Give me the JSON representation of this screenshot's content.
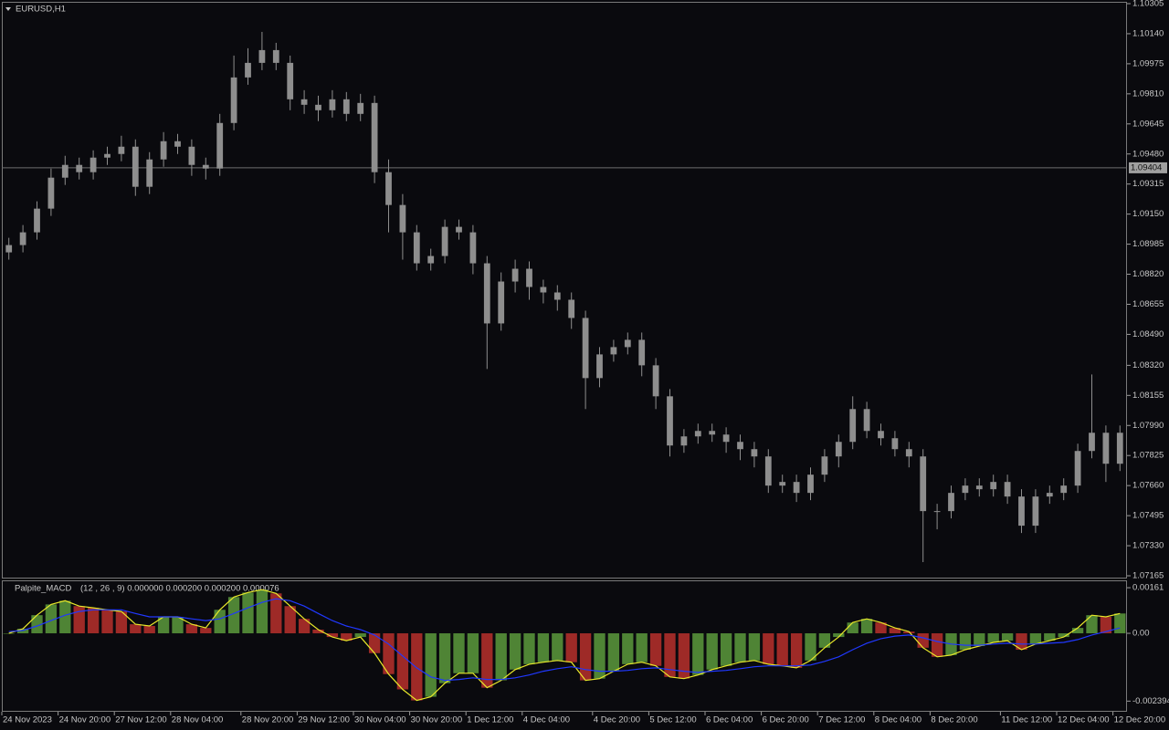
{
  "chart_data": [
    {
      "type": "candlestick",
      "title": "EURUSD,H1",
      "categories": [
        "24 Nov 2023",
        null,
        null,
        null,
        "24 Nov 20:00",
        null,
        null,
        null,
        "27 Nov 12:00",
        null,
        null,
        null,
        "28 Nov 04:00",
        null,
        null,
        null,
        null,
        "28 Nov 20:00",
        null,
        null,
        null,
        "29 Nov 12:00",
        null,
        null,
        null,
        "30 Nov 04:00",
        null,
        null,
        null,
        "30 Nov 20:00",
        null,
        null,
        null,
        "1 Dec 12:00",
        null,
        null,
        null,
        "4 Dec 04:00",
        null,
        null,
        null,
        null,
        "4 Dec 20:00",
        null,
        null,
        null,
        "5 Dec 12:00",
        null,
        null,
        null,
        "6 Dec 04:00",
        null,
        null,
        null,
        "6 Dec 20:00",
        null,
        null,
        null,
        "7 Dec 12:00",
        null,
        null,
        null,
        "8 Dec 04:00",
        null,
        null,
        null,
        "8 Dec 20:00",
        null,
        null,
        null,
        null,
        "11 Dec 12:00",
        null,
        null,
        null,
        "12 Dec 04:00",
        null,
        null,
        null,
        "12 Dec 20:00"
      ],
      "open": [
        1.0894,
        1.0898,
        1.0905,
        1.0918,
        1.0935,
        1.0942,
        1.0938,
        1.0946,
        1.0948,
        1.0952,
        1.093,
        1.0945,
        1.0955,
        1.0952,
        1.0942,
        1.094,
        1.0965,
        1.099,
        1.0998,
        1.1005,
        1.0998,
        1.0978,
        1.0975,
        1.0972,
        1.0978,
        1.097,
        1.0976,
        1.0938,
        1.092,
        1.0905,
        1.0888,
        1.0892,
        1.0908,
        1.0905,
        1.0888,
        1.0855,
        1.0878,
        1.0885,
        1.0875,
        1.0872,
        1.0868,
        1.0858,
        1.0825,
        1.0838,
        1.0842,
        1.0846,
        1.0832,
        1.0815,
        1.0788,
        1.0793,
        1.0796,
        1.0794,
        1.079,
        1.0786,
        1.0782,
        1.0766,
        1.0768,
        1.0762,
        1.0772,
        1.0782,
        1.079,
        1.0808,
        1.0796,
        1.0792,
        1.0786,
        1.0782,
        1.0752,
        1.0752,
        1.0762,
        1.0766,
        1.0764,
        1.0768,
        1.076,
        1.0744,
        1.076,
        1.0762,
        1.0766,
        1.0785,
        1.0795,
        1.0778
      ],
      "high": [
        1.0902,
        1.0909,
        1.0922,
        1.094,
        1.0947,
        1.0946,
        1.095,
        1.0952,
        1.0958,
        1.0956,
        1.0949,
        1.096,
        1.0959,
        1.0956,
        1.0946,
        1.097,
        1.1002,
        1.1006,
        1.1015,
        1.1009,
        1.1002,
        1.0983,
        1.098,
        1.0983,
        1.0982,
        1.0981,
        1.098,
        1.0945,
        1.0926,
        1.0909,
        1.0896,
        1.0912,
        1.0912,
        1.0909,
        1.0892,
        1.0883,
        1.089,
        1.0889,
        1.0879,
        1.0876,
        1.0872,
        1.0862,
        1.0842,
        1.0846,
        1.085,
        1.085,
        1.0836,
        1.0819,
        1.0797,
        1.08,
        1.08,
        1.0798,
        1.0794,
        1.079,
        1.0786,
        1.0772,
        1.0772,
        1.0776,
        1.0786,
        1.0794,
        1.0815,
        1.0812,
        1.08,
        1.0796,
        1.079,
        1.0786,
        1.0756,
        1.0766,
        1.077,
        1.077,
        1.0772,
        1.0772,
        1.0764,
        1.0764,
        1.0766,
        1.077,
        1.0789,
        1.0827,
        1.0799,
        1.0799
      ],
      "low": [
        1.089,
        1.0894,
        1.0901,
        1.0914,
        1.0931,
        1.0934,
        1.0934,
        1.0942,
        1.0944,
        1.0925,
        1.0926,
        1.0941,
        1.0948,
        1.0936,
        1.0934,
        1.0936,
        1.0961,
        1.0986,
        1.0994,
        1.0994,
        1.0972,
        1.097,
        1.0966,
        1.0968,
        1.0966,
        1.0966,
        1.0932,
        1.0905,
        1.089,
        1.0884,
        1.0884,
        1.0888,
        1.0901,
        1.0882,
        1.083,
        1.0851,
        1.0872,
        1.0868,
        1.0866,
        1.0862,
        1.0852,
        1.0808,
        1.082,
        1.0834,
        1.0838,
        1.0826,
        1.0808,
        1.0782,
        1.0784,
        1.0789,
        1.079,
        1.0784,
        1.078,
        1.0776,
        1.0762,
        1.0762,
        1.0757,
        1.0758,
        1.0768,
        1.0776,
        1.0786,
        1.0792,
        1.0788,
        1.0782,
        1.0776,
        1.0724,
        1.0742,
        1.0748,
        1.0758,
        1.076,
        1.076,
        1.0756,
        1.074,
        1.074,
        1.0756,
        1.0758,
        1.0762,
        1.0781,
        1.0768,
        1.0774
      ],
      "close": [
        1.0898,
        1.0905,
        1.0918,
        1.0935,
        1.0942,
        1.0938,
        1.0946,
        1.0948,
        1.0952,
        1.093,
        1.0945,
        1.0955,
        1.0952,
        1.0942,
        1.094,
        1.0965,
        1.099,
        1.0998,
        1.1005,
        1.0998,
        1.0978,
        1.0975,
        1.0972,
        1.0978,
        1.097,
        1.0976,
        1.0938,
        1.092,
        1.0905,
        1.0888,
        1.0892,
        1.0908,
        1.0905,
        1.0888,
        1.0855,
        1.0878,
        1.0885,
        1.0875,
        1.0872,
        1.0868,
        1.0858,
        1.0825,
        1.0838,
        1.0842,
        1.0846,
        1.0832,
        1.0815,
        1.0788,
        1.0793,
        1.0796,
        1.0794,
        1.079,
        1.0786,
        1.0782,
        1.0766,
        1.0768,
        1.0762,
        1.0772,
        1.0782,
        1.079,
        1.0808,
        1.0796,
        1.0792,
        1.0786,
        1.0782,
        1.0752,
        1.0752,
        1.0762,
        1.0766,
        1.0764,
        1.0768,
        1.076,
        1.0744,
        1.076,
        1.0762,
        1.0766,
        1.0785,
        1.0795,
        1.0778,
        1.0795
      ],
      "color": "#8e8e8e",
      "ylim": [
        1.0715,
        1.10315
      ],
      "yticks": [
        {
          "value": 1.10305,
          "label": "1.10305"
        },
        {
          "value": 1.1014,
          "label": "1.10140"
        },
        {
          "value": 1.09975,
          "label": "1.09975"
        },
        {
          "value": 1.0981,
          "label": "1.09810"
        },
        {
          "value": 1.09645,
          "label": "1.09645"
        },
        {
          "value": 1.0948,
          "label": "1.09480"
        },
        {
          "value": 1.09315,
          "label": "1.09315"
        },
        {
          "value": 1.0915,
          "label": "1.09150"
        },
        {
          "value": 1.08985,
          "label": "1.08985"
        },
        {
          "value": 1.0882,
          "label": "1.08820"
        },
        {
          "value": 1.08655,
          "label": "1.08655"
        },
        {
          "value": 1.0849,
          "label": "1.08490"
        },
        {
          "value": 1.0832,
          "label": "1.08320"
        },
        {
          "value": 1.08155,
          "label": "1.08155"
        },
        {
          "value": 1.0799,
          "label": "1.07990"
        },
        {
          "value": 1.07825,
          "label": "1.07825"
        },
        {
          "value": 1.0766,
          "label": "1.07660"
        },
        {
          "value": 1.07495,
          "label": "1.07495"
        },
        {
          "value": 1.0733,
          "label": "1.07330"
        },
        {
          "value": 1.07165,
          "label": "1.07165"
        }
      ],
      "price_line": {
        "value": 1.09404,
        "label": "1.09404"
      }
    },
    {
      "type": "macd",
      "title": "Palpite_MACD",
      "subtitle": "(12 , 26 , 9) 0.000000 0.000200 0.000200 0.000076",
      "up_color": "#5c9a3c",
      "down_color": "#b8302c",
      "series": [
        {
          "color": "#e8e82a",
          "values": [
            0,
            0.00016,
            0.00064,
            0.00102,
            0.00115,
            0.00096,
            0.0009,
            0.00083,
            0.00077,
            0.00032,
            0.00026,
            0.00058,
            0.00058,
            0.00032,
            0.00019,
            0.00083,
            0.00128,
            0.00144,
            0.00154,
            0.00141,
            0.00096,
            0.00051,
            0.00013,
            -0.00013,
            -0.00026,
            -0.00013,
            -0.0007,
            -0.00144,
            -0.00198,
            -0.00237,
            -0.00224,
            -0.00176,
            -0.00141,
            -0.00141,
            -0.00192,
            -0.00166,
            -0.00128,
            -0.00109,
            -0.00102,
            -0.00096,
            -0.00102,
            -0.00166,
            -0.0016,
            -0.00134,
            -0.00109,
            -0.00102,
            -0.00115,
            -0.00154,
            -0.0016,
            -0.00147,
            -0.00128,
            -0.00115,
            -0.00102,
            -0.00096,
            -0.00109,
            -0.00115,
            -0.00122,
            -0.00096,
            -0.00051,
            -0.00013,
            0.00038,
            0.00051,
            0.00038,
            0.00019,
            6e-05,
            -0.00051,
            -0.00083,
            -0.00077,
            -0.00058,
            -0.00045,
            -0.00032,
            -0.00026,
            -0.00058,
            -0.00038,
            -0.00026,
            -0.00013,
            0.00019,
            0.00064,
            0.00058,
            0.0007
          ]
        },
        {
          "color": "#2038ff",
          "values": [
            6e-05,
            0.0001,
            0.00026,
            0.00045,
            0.00064,
            0.00077,
            0.00083,
            0.00083,
            0.00083,
            0.0007,
            0.00058,
            0.00058,
            0.00058,
            0.00051,
            0.00045,
            0.00051,
            0.0007,
            0.0009,
            0.00109,
            0.00122,
            0.00115,
            0.00096,
            0.0007,
            0.00045,
            0.00026,
            0.00013,
            -6e-05,
            -0.00038,
            -0.0008,
            -0.00122,
            -0.00154,
            -0.00166,
            -0.00163,
            -0.00157,
            -0.00163,
            -0.00163,
            -0.00157,
            -0.00147,
            -0.00134,
            -0.00125,
            -0.00118,
            -0.00128,
            -0.00134,
            -0.00134,
            -0.00131,
            -0.00125,
            -0.00122,
            -0.00128,
            -0.00134,
            -0.00138,
            -0.00134,
            -0.00131,
            -0.00125,
            -0.00118,
            -0.00115,
            -0.00115,
            -0.00115,
            -0.00112,
            -0.00099,
            -0.00083,
            -0.00058,
            -0.00035,
            -0.00019,
            -0.0001,
            -6e-05,
            -0.00016,
            -0.00029,
            -0.00038,
            -0.00042,
            -0.00042,
            -0.00038,
            -0.00035,
            -0.00038,
            -0.00038,
            -0.00035,
            -0.00032,
            -0.00022,
            -6e-05,
            6e-05,
            0.00019
          ]
        }
      ],
      "ylim": [
        -0.00277,
        0.00187
      ],
      "yticks": [
        {
          "value": 0.00161,
          "label": "0.00161"
        },
        {
          "value": 0,
          "label": "0.00"
        },
        {
          "value": -0.002394,
          "label": "-0.002394"
        }
      ]
    }
  ]
}
